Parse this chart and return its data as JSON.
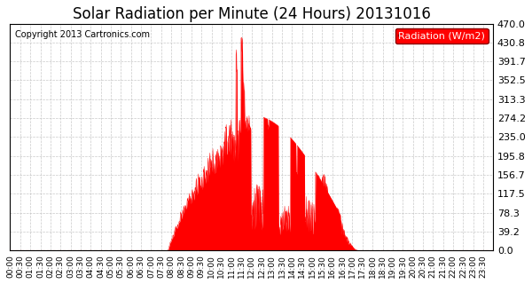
{
  "title": "Solar Radiation per Minute (24 Hours) 20131016",
  "copyright_text": "Copyright 2013 Cartronics.com",
  "legend_label": "Radiation (W/m2)",
  "ylim": [
    0,
    470
  ],
  "yticks": [
    0.0,
    39.2,
    78.3,
    117.5,
    156.7,
    195.8,
    235.0,
    274.2,
    313.3,
    352.5,
    391.7,
    430.8,
    470.0
  ],
  "fill_color": "#FF0000",
  "line_color": "#FF0000",
  "hline_color": "#FF0000",
  "bg_color": "#FFFFFF",
  "grid_color": "#BBBBBB",
  "title_fontsize": 12,
  "copyright_fontsize": 7,
  "tick_fontsize": 6.5,
  "legend_fontsize": 8,
  "ytick_fontsize": 8
}
